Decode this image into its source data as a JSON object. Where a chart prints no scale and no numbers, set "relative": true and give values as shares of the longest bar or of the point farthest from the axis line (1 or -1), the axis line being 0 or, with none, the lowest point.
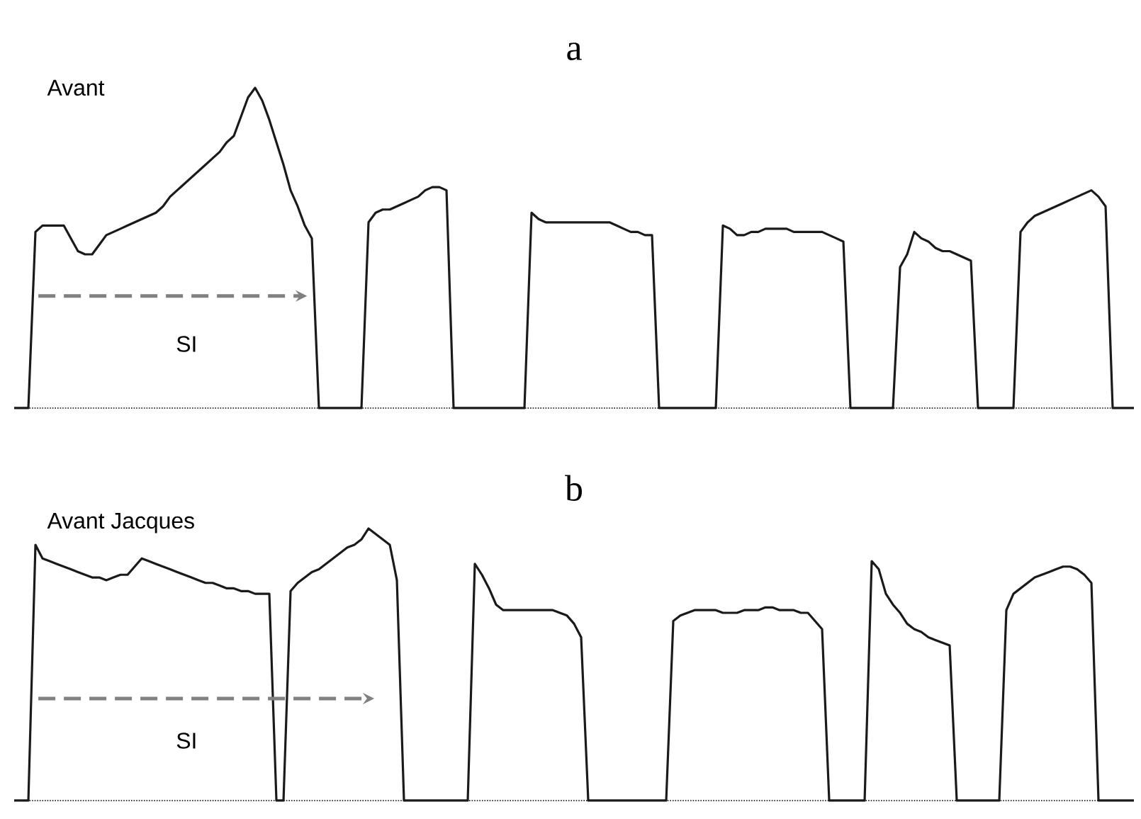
{
  "chart_data": [
    {
      "type": "line",
      "title": "a",
      "relative": true,
      "annotations": [
        "Avant",
        "SI"
      ],
      "categories": [
        null,
        null,
        null,
        null,
        null,
        null,
        null,
        null,
        null,
        null,
        null,
        null,
        null,
        null,
        null,
        null,
        null,
        null,
        null,
        null,
        null,
        null,
        null,
        null,
        null,
        null,
        null,
        null,
        null,
        null,
        null,
        null,
        null,
        null,
        null,
        null,
        null,
        null,
        null,
        null,
        null,
        null,
        null,
        null,
        null,
        null,
        null,
        null,
        null,
        null,
        null,
        null,
        null,
        null,
        null,
        null,
        null,
        null,
        null,
        null,
        null,
        null,
        null,
        null,
        null,
        null,
        null,
        null,
        null,
        null,
        null,
        null,
        null,
        null,
        null,
        null,
        null,
        null,
        null,
        null,
        null,
        null,
        null,
        null,
        null,
        null,
        null,
        null,
        null,
        null,
        null,
        null,
        null,
        null,
        null,
        null,
        null,
        null,
        null,
        null,
        null,
        null,
        null,
        null,
        null,
        null,
        null,
        null,
        null,
        null,
        null,
        null,
        null,
        null,
        null,
        null,
        null,
        null,
        null,
        null,
        null,
        null,
        null,
        null,
        null,
        null,
        null,
        null,
        null,
        null,
        null,
        null,
        null,
        null,
        null,
        null,
        null,
        null,
        null,
        null,
        null,
        null,
        null,
        null,
        null,
        null,
        null,
        null,
        null,
        null,
        null,
        null,
        null,
        null,
        null,
        null,
        null,
        null,
        null
      ],
      "series": [
        {
          "color": "#1a1a1a",
          "values": [
            0,
            0,
            0,
            0.55,
            0.57,
            0.57,
            0.57,
            0.57,
            0.53,
            0.49,
            0.48,
            0.48,
            0.51,
            0.54,
            0.55,
            0.56,
            0.57,
            0.58,
            0.59,
            0.6,
            0.61,
            0.63,
            0.66,
            0.68,
            0.7,
            0.72,
            0.74,
            0.76,
            0.78,
            0.8,
            0.83,
            0.85,
            0.91,
            0.97,
            1,
            0.96,
            0.9,
            0.83,
            0.76,
            0.68,
            0.63,
            0.57,
            0.53,
            0,
            0,
            0,
            0,
            0,
            0,
            0,
            0.58,
            0.61,
            0.62,
            0.62,
            0.63,
            0.64,
            0.65,
            0.66,
            0.68,
            0.69,
            0.69,
            0.68,
            0,
            0,
            0,
            0,
            0,
            0,
            0,
            0,
            0,
            0,
            0,
            0.61,
            0.59,
            0.58,
            0.58,
            0.58,
            0.58,
            0.58,
            0.58,
            0.58,
            0.58,
            0.58,
            0.58,
            0.57,
            0.56,
            0.55,
            0.55,
            0.54,
            0.54,
            0,
            0,
            0,
            0,
            0,
            0,
            0,
            0,
            0,
            0.57,
            0.56,
            0.54,
            0.54,
            0.55,
            0.55,
            0.56,
            0.56,
            0.56,
            0.56,
            0.55,
            0.55,
            0.55,
            0.55,
            0.55,
            0.54,
            0.53,
            0.52,
            0,
            0,
            0,
            0,
            0,
            0,
            0,
            0.44,
            0.48,
            0.55,
            0.53,
            0.52,
            0.5,
            0.49,
            0.49,
            0.48,
            0.47,
            0.46,
            0,
            0,
            0,
            0,
            0,
            0,
            0.55,
            0.58,
            0.6,
            0.61,
            0.62,
            0.63,
            0.64,
            0.65,
            0.66,
            0.67,
            0.68,
            0.66,
            0.63,
            0,
            0,
            0,
            0
          ]
        }
      ]
    },
    {
      "type": "line",
      "title": "b",
      "relative": true,
      "annotations": [
        "Avant Jacques",
        "SI"
      ],
      "categories": [
        null,
        null,
        null,
        null,
        null,
        null,
        null,
        null,
        null,
        null,
        null,
        null,
        null,
        null,
        null,
        null,
        null,
        null,
        null,
        null,
        null,
        null,
        null,
        null,
        null,
        null,
        null,
        null,
        null,
        null,
        null,
        null,
        null,
        null,
        null,
        null,
        null,
        null,
        null,
        null,
        null,
        null,
        null,
        null,
        null,
        null,
        null,
        null,
        null,
        null,
        null,
        null,
        null,
        null,
        null,
        null,
        null,
        null,
        null,
        null,
        null,
        null,
        null,
        null,
        null,
        null,
        null,
        null,
        null,
        null,
        null,
        null,
        null,
        null,
        null,
        null,
        null,
        null,
        null,
        null,
        null,
        null,
        null,
        null,
        null,
        null,
        null,
        null,
        null,
        null,
        null,
        null,
        null,
        null,
        null,
        null,
        null,
        null,
        null,
        null,
        null,
        null,
        null,
        null,
        null,
        null,
        null,
        null,
        null,
        null,
        null,
        null,
        null,
        null,
        null,
        null,
        null,
        null,
        null,
        null,
        null,
        null,
        null,
        null,
        null,
        null,
        null,
        null,
        null,
        null,
        null,
        null,
        null,
        null,
        null,
        null,
        null,
        null,
        null,
        null,
        null,
        null,
        null,
        null,
        null,
        null,
        null,
        null,
        null,
        null,
        null,
        null,
        null,
        null,
        null,
        null,
        null,
        null,
        null
      ],
      "series": [
        {
          "color": "#1a1a1a",
          "values": [
            0,
            0,
            0,
            0.94,
            0.89,
            0.88,
            0.87,
            0.86,
            0.85,
            0.84,
            0.83,
            0.82,
            0.82,
            0.81,
            0.82,
            0.83,
            0.83,
            0.86,
            0.89,
            0.88,
            0.87,
            0.86,
            0.85,
            0.84,
            0.83,
            0.82,
            0.81,
            0.8,
            0.8,
            0.79,
            0.78,
            0.78,
            0.77,
            0.77,
            0.76,
            0.76,
            0.76,
            0,
            0,
            0.77,
            0.8,
            0.82,
            0.84,
            0.85,
            0.87,
            0.89,
            0.91,
            0.93,
            0.94,
            0.96,
            1,
            0.98,
            0.96,
            0.94,
            0.81,
            0,
            0,
            0,
            0,
            0,
            0,
            0,
            0,
            0,
            0,
            0.87,
            0.83,
            0.78,
            0.72,
            0.7,
            0.7,
            0.7,
            0.7,
            0.7,
            0.7,
            0.7,
            0.7,
            0.69,
            0.68,
            0.65,
            0.6,
            0,
            0,
            0,
            0,
            0,
            0,
            0,
            0,
            0,
            0,
            0,
            0,
            0.66,
            0.68,
            0.69,
            0.7,
            0.7,
            0.7,
            0.7,
            0.69,
            0.69,
            0.69,
            0.7,
            0.7,
            0.7,
            0.71,
            0.71,
            0.7,
            0.7,
            0.7,
            0.69,
            0.69,
            0.66,
            0.63,
            0,
            0,
            0,
            0,
            0,
            0,
            0.88,
            0.85,
            0.76,
            0.72,
            0.69,
            0.65,
            0.63,
            0.62,
            0.6,
            0.59,
            0.58,
            0.57,
            0,
            0,
            0,
            0,
            0,
            0,
            0,
            0.7,
            0.76,
            0.78,
            0.8,
            0.82,
            0.83,
            0.84,
            0.85,
            0.86,
            0.86,
            0.85,
            0.83,
            0.8,
            0,
            0,
            0,
            0,
            0,
            0
          ]
        }
      ]
    }
  ]
}
